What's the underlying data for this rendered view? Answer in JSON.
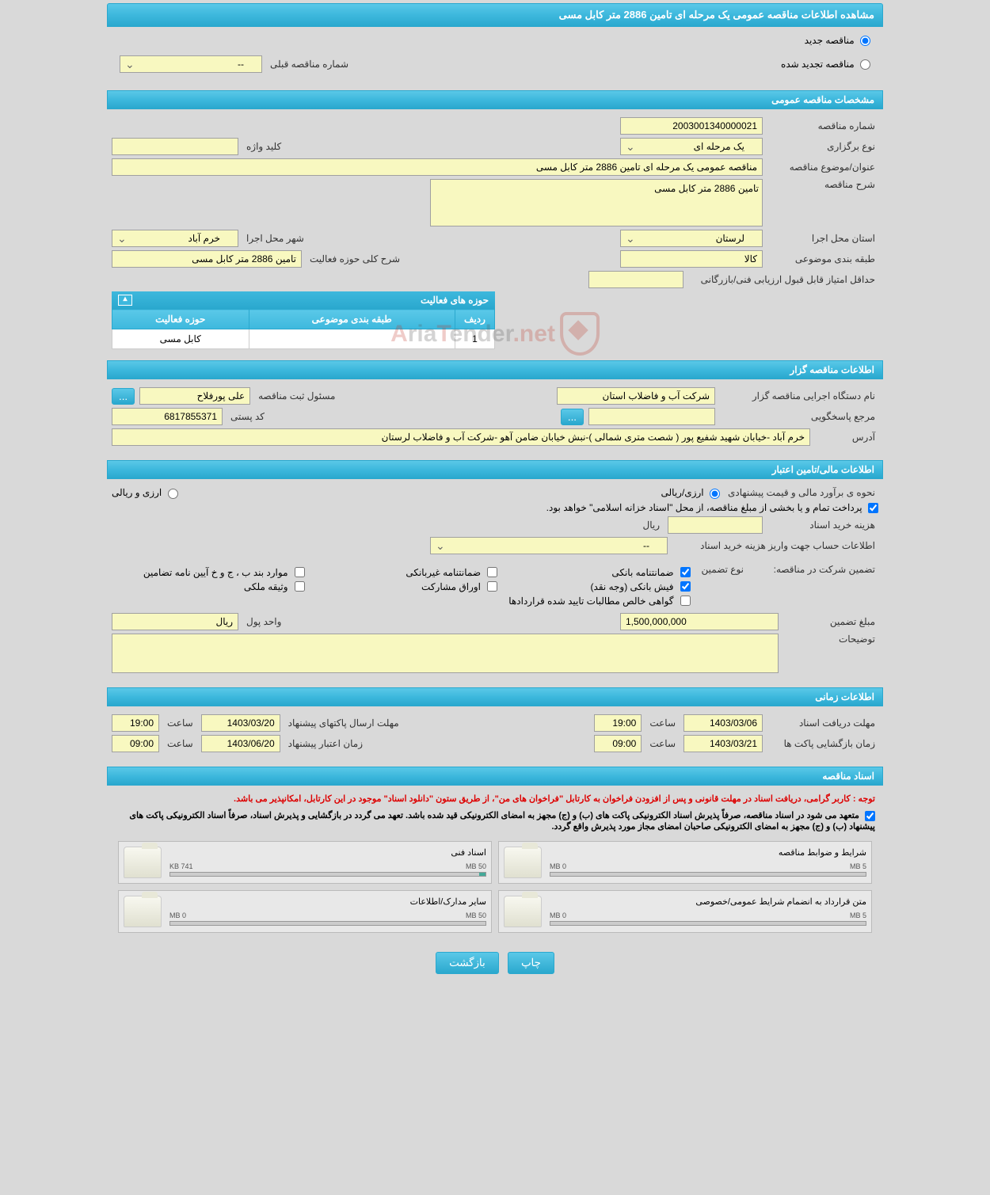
{
  "header": {
    "title": "مشاهده اطلاعات مناقصه عمومی یک مرحله ای تامین 2886 متر کابل مسی"
  },
  "tender_type": {
    "new_label": "مناقصه جدید",
    "renewed_label": "مناقصه تجدید شده",
    "prev_number_label": "شماره مناقصه قبلی",
    "prev_number_value": "--"
  },
  "sections": {
    "general": "مشخصات مناقصه عمومی",
    "tenderer": "اطلاعات مناقصه گزار",
    "financial": "اطلاعات مالی/تامین اعتبار",
    "timing": "اطلاعات زمانی",
    "documents": "اسناد مناقصه"
  },
  "general": {
    "number_label": "شماره مناقصه",
    "number_value": "2003001340000021",
    "holding_type_label": "نوع برگزاری",
    "holding_type_value": "یک مرحله ای",
    "keyword_label": "کلید واژه",
    "keyword_value": "",
    "title_label": "عنوان/موضوع مناقصه",
    "title_value": "مناقصه عمومی یک مرحله ای تامین 2886 متر کابل مسی",
    "desc_label": "شرح مناقصه",
    "desc_value": "تامین 2886 متر کابل مسی",
    "province_label": "استان محل اجرا",
    "province_value": "لرستان",
    "city_label": "شهر محل اجرا",
    "city_value": "خرم آباد",
    "category_label": "طبقه بندی موضوعی",
    "category_value": "کالا",
    "activity_scope_label": "شرح کلی حوزه فعالیت",
    "activity_scope_value": "تامین 2886 متر کابل مسی",
    "min_score_label": "حداقل امتیاز قابل قبول ارزیابی فنی/بازرگانی",
    "min_score_value": ""
  },
  "activity_table": {
    "title": "حوزه های فعالیت",
    "cols": {
      "row": "ردیف",
      "category": "طبقه بندی موضوعی",
      "activity": "حوزه فعالیت"
    },
    "rows": [
      {
        "row": "1",
        "category": "",
        "activity": "کابل مسی"
      }
    ]
  },
  "tenderer": {
    "exec_name_label": "نام دستگاه اجرایی مناقصه گزار",
    "exec_name_value": "شرکت آب و فاضلاب استان",
    "reg_officer_label": "مسئول ثبت مناقصه",
    "reg_officer_value": "علی پورفلاح",
    "contact_label": "مرجع پاسخگویی",
    "contact_value": "",
    "postal_label": "کد پستی",
    "postal_value": "6817855371",
    "address_label": "آدرس",
    "address_value": "خرم آباد -خیابان شهید شفیع پور ( شصت متری شمالی )-نبش خیابان ضامن آهو -شرکت آب و فاضلاب لرستان",
    "more_btn": "..."
  },
  "financial": {
    "estimation_label": "نحوه ی برآورد مالی و قیمت پیشنهادی",
    "option_rial": "ارزی/ریالی",
    "option_currency": "ارزی و ریالی",
    "treasury_note": "پرداخت تمام و یا بخشی از مبلغ مناقصه، از محل \"اسناد خزانه اسلامی\" خواهد بود.",
    "doc_cost_label": "هزینه خرید اسناد",
    "doc_cost_unit": "ریال",
    "account_label": "اطلاعات حساب جهت واریز هزینه خرید اسناد",
    "account_value": "--",
    "guarantee_section_label": "تضمین شرکت در مناقصه:",
    "guarantee_type_label": "نوع تضمین",
    "chk1": "ضمانتنامه بانکی",
    "chk2": "ضمانتنامه غیربانکی",
    "chk3": "موارد بند ب ، ج و خ آیین نامه تضامین",
    "chk4": "فیش بانکی (وجه نقد)",
    "chk5": "اوراق مشارکت",
    "chk6": "وثیقه ملکی",
    "chk7": "گواهی خالص مطالبات تایید شده قراردادها",
    "guarantee_amount_label": "مبلغ تضمین",
    "guarantee_amount_value": "1,500,000,000",
    "currency_unit_label": "واحد پول",
    "currency_unit_value": "ریال",
    "notes_label": "توضیحات",
    "notes_value": ""
  },
  "timing": {
    "doc_deadline_label": "مهلت دریافت اسناد",
    "doc_deadline_date": "1403/03/06",
    "doc_deadline_time_label": "ساعت",
    "doc_deadline_time": "19:00",
    "pkg_deadline_label": "مهلت ارسال پاکتهای پیشنهاد",
    "pkg_deadline_date": "1403/03/20",
    "pkg_deadline_time": "19:00",
    "open_label": "زمان بازگشایی پاکت ها",
    "open_date": "1403/03/21",
    "open_time": "09:00",
    "validity_label": "زمان اعتبار پیشنهاد",
    "validity_date": "1403/06/20",
    "validity_time": "09:00"
  },
  "documents": {
    "notice1": "توجه : کاربر گرامی، دریافت اسناد در مهلت قانونی و پس از افزودن فراخوان به کارتابل \"فراخوان های من\"، از طریق ستون \"دانلود اسناد\" موجود در این کارتابل، امکانپذیر می باشد.",
    "notice2": "متعهد می شود در اسناد مناقصه، صرفاً پذیرش اسناد الکترونیکی پاکت های (ب) و (ج) مجهز به امضای الکترونیکی قید شده باشد. تعهد می گردد در بازگشایی و پذیرش اسناد، صرفاً اسناد الکترونیکی پاکت های پیشنهاد (ب) و (ج) مجهز به امضای الکترونیکی صاحبان امضای مجاز مورد پذیرش واقع گردد.",
    "files": [
      {
        "title": "شرایط و ضوابط مناقصه",
        "used": "0 MB",
        "total": "5 MB",
        "pct": 0
      },
      {
        "title": "اسناد فنی",
        "used": "741 KB",
        "total": "50 MB",
        "pct": 2
      },
      {
        "title": "متن قرارداد به انضمام شرایط عمومی/خصوصی",
        "used": "0 MB",
        "total": "5 MB",
        "pct": 0
      },
      {
        "title": "سایر مدارک/اطلاعات",
        "used": "0 MB",
        "total": "50 MB",
        "pct": 0
      }
    ]
  },
  "footer": {
    "print": "چاپ",
    "back": "بازگشت"
  },
  "colors": {
    "header_bg": "#3db8dd",
    "field_bg": "#f8f8c0",
    "page_bg": "#d9d9d9",
    "notice_red": "#d00"
  }
}
